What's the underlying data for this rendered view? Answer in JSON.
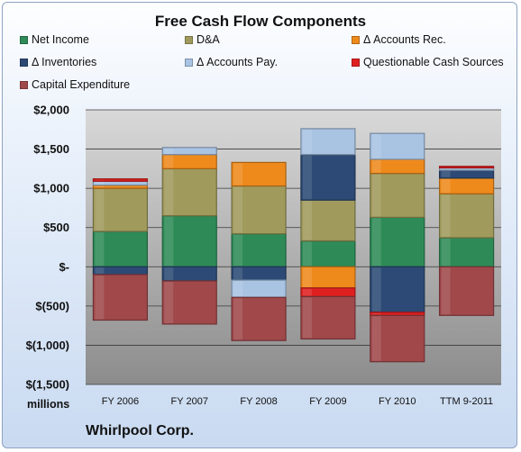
{
  "chart_data": {
    "type": "bar",
    "stacked": true,
    "title": "Free Cash Flow Components",
    "units_label": "millions",
    "company": "Whirlpool Corp.",
    "categories": [
      "FY 2006",
      "FY 2007",
      "FY 2008",
      "FY 2009",
      "FY 2010",
      "TTM 9-2011"
    ],
    "ylim": [
      -1500,
      2000
    ],
    "yticks": [
      -1500,
      -1000,
      -500,
      0,
      500,
      1000,
      1500,
      2000
    ],
    "ytick_labels": [
      "$(1,500)",
      "$(1,000)",
      "$(500)",
      "$-",
      "$500",
      "$1,000",
      "$1,500",
      "$2,000"
    ],
    "grid": true,
    "legend_placement": "top",
    "series": [
      {
        "name": "Net Income",
        "color": "#2e8b57",
        "values": [
          450,
          650,
          420,
          330,
          630,
          370
        ]
      },
      {
        "name": "D&A",
        "color": "#a09a5c",
        "values": [
          550,
          600,
          610,
          520,
          560,
          560
        ]
      },
      {
        "name": "Δ Accounts Rec.",
        "color": "#ee8a1c",
        "values": [
          40,
          180,
          300,
          -270,
          180,
          200
        ]
      },
      {
        "name": "Δ Inventories",
        "color": "#2c4a75",
        "values": [
          -100,
          -180,
          -170,
          580,
          -580,
          100
        ]
      },
      {
        "name": "Δ Accounts Pay.",
        "color": "#a9c3e3",
        "values": [
          50,
          90,
          -220,
          330,
          330,
          30
        ]
      },
      {
        "name": "Questionable Cash Sources",
        "color": "#e02020",
        "values": [
          30,
          0,
          0,
          -110,
          -40,
          20
        ]
      },
      {
        "name": "Capital Expenditure",
        "color": "#a0484a",
        "values": [
          -580,
          -550,
          -550,
          -540,
          -590,
          -620
        ]
      }
    ]
  }
}
